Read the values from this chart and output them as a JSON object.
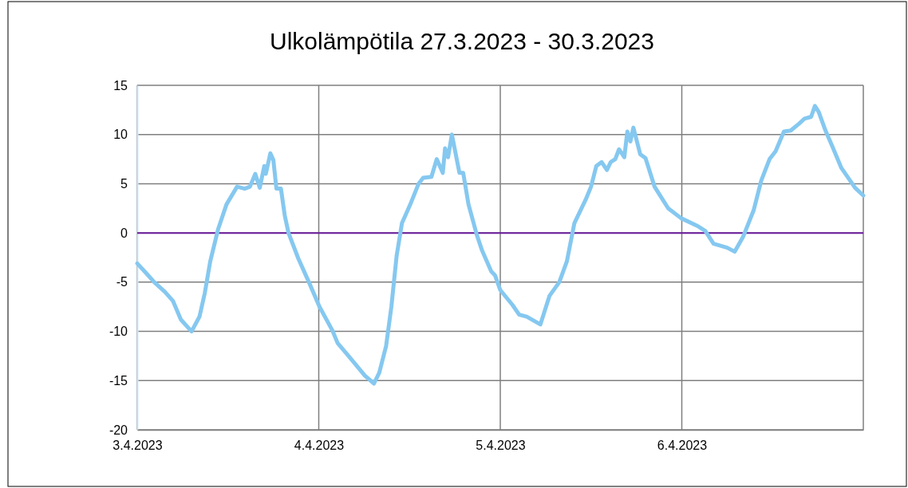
{
  "chart_data": {
    "type": "line",
    "title": "Ulkolämpötila 27.3.2023 - 30.3.2023",
    "xlim": [
      "2023-04-03",
      "2023-04-07"
    ],
    "xticks": [
      {
        "value": "2023-04-03",
        "label": "3.4.2023"
      },
      {
        "value": "2023-04-04",
        "label": "4.4.2023"
      },
      {
        "value": "2023-04-05",
        "label": "5.4.2023"
      },
      {
        "value": "2023-04-06",
        "label": "6.4.2023"
      }
    ],
    "ylim": [
      -20,
      15
    ],
    "yticks": [
      -20,
      -15,
      -10,
      -5,
      0,
      5,
      10,
      15
    ],
    "grid": true,
    "marker": "none",
    "line_style": "solid",
    "ref_lines": [
      {
        "axis": "y",
        "value": 0,
        "color": "#6a1b9a"
      }
    ],
    "series": [
      {
        "color": "#85c8f0",
        "x": [
          "2023-04-03T00:00",
          "2023-04-03T01:12",
          "2023-04-03T02:15",
          "2023-04-03T03:40",
          "2023-04-03T04:43",
          "2023-04-03T05:46",
          "2023-04-03T07:11",
          "2023-04-03T08:14",
          "2023-04-03T08:56",
          "2023-04-03T09:39",
          "2023-04-03T10:42",
          "2023-04-03T11:48",
          "2023-04-03T13:12",
          "2023-04-03T14:12",
          "2023-04-03T14:54",
          "2023-04-03T15:36",
          "2023-04-03T16:12",
          "2023-04-03T16:48",
          "2023-04-03T17:00",
          "2023-04-03T17:36",
          "2023-04-03T18:00",
          "2023-04-03T18:24",
          "2023-04-03T19:00",
          "2023-04-03T19:30",
          "2023-04-03T20:00",
          "2023-04-03T21:18",
          "2023-04-03T22:42",
          "2023-04-04T00:06",
          "2023-04-04T01:48",
          "2023-04-04T02:30",
          "2023-04-04T03:36",
          "2023-04-04T04:42",
          "2023-04-04T06:06",
          "2023-04-04T07:18",
          "2023-04-04T08:00",
          "2023-04-04T08:54",
          "2023-04-04T09:36",
          "2023-04-04T10:18",
          "2023-04-04T11:00",
          "2023-04-04T12:06",
          "2023-04-04T13:12",
          "2023-04-04T13:48",
          "2023-04-04T14:54",
          "2023-04-04T15:36",
          "2023-04-04T16:24",
          "2023-04-04T16:42",
          "2023-04-04T17:06",
          "2023-04-04T17:36",
          "2023-04-04T18:36",
          "2023-04-04T19:06",
          "2023-04-04T19:48",
          "2023-04-04T20:54",
          "2023-04-04T21:36",
          "2023-04-04T22:48",
          "2023-04-04T23:18",
          "2023-04-05T00:00",
          "2023-04-05T01:36",
          "2023-04-05T02:30",
          "2023-04-05T03:30",
          "2023-04-05T05:18",
          "2023-04-05T06:30",
          "2023-04-05T07:48",
          "2023-04-05T08:48",
          "2023-04-05T09:48",
          "2023-04-05T11:18",
          "2023-04-05T12:00",
          "2023-04-05T12:42",
          "2023-04-05T13:24",
          "2023-04-05T14:06",
          "2023-04-05T14:36",
          "2023-04-05T15:12",
          "2023-04-05T15:42",
          "2023-04-05T16:24",
          "2023-04-05T16:48",
          "2023-04-05T17:12",
          "2023-04-05T17:36",
          "2023-04-05T18:30",
          "2023-04-05T19:12",
          "2023-04-05T20:24",
          "2023-04-05T22:12",
          "2023-04-05T23:54",
          "2023-04-06T02:06",
          "2023-04-06T03:06",
          "2023-04-06T04:12",
          "2023-04-06T06:00",
          "2023-04-06T07:00",
          "2023-04-06T08:06",
          "2023-04-06T09:30",
          "2023-04-06T10:30",
          "2023-04-06T11:36",
          "2023-04-06T12:24",
          "2023-04-06T13:30",
          "2023-04-06T14:24",
          "2023-04-06T15:30",
          "2023-04-06T16:12",
          "2023-04-06T17:06",
          "2023-04-06T17:36",
          "2023-04-06T18:06",
          "2023-04-06T19:00",
          "2023-04-06T19:54",
          "2023-04-06T21:06",
          "2023-04-06T22:54",
          "2023-04-07T00:00"
        ],
        "values": [
          -3.1,
          -4.1,
          -5.0,
          -6.0,
          -6.9,
          -8.8,
          -10,
          -8.5,
          -6.1,
          -2.9,
          0.4,
          2.9,
          4.7,
          4.5,
          4.7,
          6.0,
          4.6,
          6.8,
          6.0,
          8.1,
          7.4,
          4.5,
          4.5,
          1.8,
          0,
          -2.6,
          -5.0,
          -7.5,
          -9.9,
          -11.2,
          -12.2,
          -13.2,
          -14.5,
          -15.3,
          -14.2,
          -11.5,
          -7.5,
          -2.3,
          1.0,
          2.9,
          5.0,
          5.6,
          5.7,
          7.5,
          6.1,
          8.6,
          7.7,
          10.0,
          6.1,
          6.1,
          2.9,
          -0.2,
          -1.8,
          -3.9,
          -4.3,
          -5.8,
          -7.3,
          -8.3,
          -8.5,
          -9.3,
          -6.4,
          -5.0,
          -2.9,
          1.0,
          3.4,
          4.7,
          6.8,
          7.2,
          6.4,
          7.2,
          7.5,
          8.5,
          7.7,
          10.3,
          9.3,
          10.7,
          8.0,
          7.6,
          4.7,
          2.5,
          1.5,
          0.7,
          0.2,
          -1.1,
          -1.5,
          -1.9,
          -0.4,
          2.3,
          5.3,
          7.5,
          8.3,
          10.3,
          10.4,
          11.1,
          11.6,
          11.8,
          12.9,
          12.3,
          10.4,
          8.8,
          6.6,
          4.6,
          3.8
        ]
      }
    ]
  }
}
